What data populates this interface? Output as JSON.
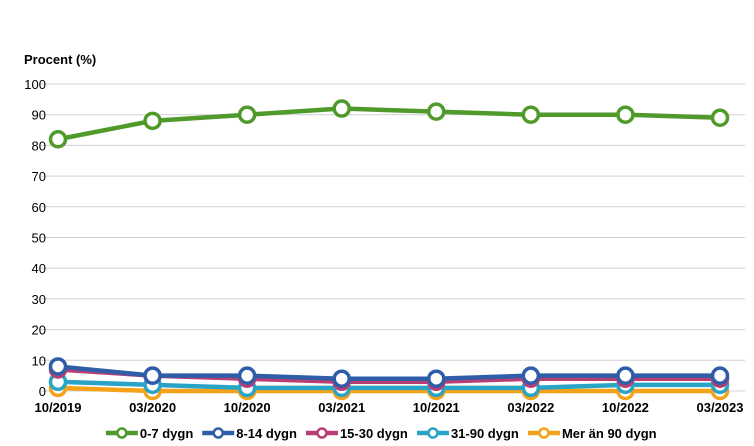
{
  "chart_data": {
    "type": "line",
    "ylabel": "Procent (%)",
    "ylim": [
      0,
      100
    ],
    "yticks": [
      0,
      10,
      20,
      30,
      40,
      50,
      60,
      70,
      80,
      90,
      100
    ],
    "grid": true,
    "legend_placement": "bottom",
    "categories": [
      "10/2019",
      "03/2020",
      "10/2020",
      "03/2021",
      "10/2021",
      "03/2022",
      "10/2022",
      "03/2023"
    ],
    "series": [
      {
        "name": "0-7 dygn",
        "color": "#4f9a2b",
        "values": [
          82,
          88,
          90,
          92,
          91,
          90,
          90,
          89
        ]
      },
      {
        "name": "8-14 dygn",
        "color": "#2f5da8",
        "values": [
          8,
          5,
          5,
          4,
          4,
          5,
          5,
          5
        ]
      },
      {
        "name": "15-30 dygn",
        "color": "#b93e73",
        "values": [
          7,
          5,
          4,
          3,
          3,
          4,
          4,
          4
        ]
      },
      {
        "name": "31-90 dygn",
        "color": "#29a3c6",
        "values": [
          3,
          2,
          1,
          1,
          1,
          1,
          2,
          2
        ]
      },
      {
        "name": "Mer än 90 dygn",
        "color": "#f5a21b",
        "values": [
          1,
          0,
          0,
          0,
          0,
          0,
          0,
          0
        ]
      }
    ]
  }
}
